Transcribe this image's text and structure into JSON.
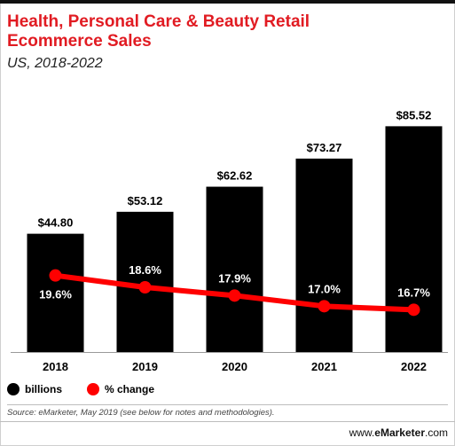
{
  "header": {
    "title": "Health, Personal Care & Beauty Retail Ecommerce Sales",
    "subtitle": "US, 2018-2022"
  },
  "legend": {
    "billions_label": "billions",
    "change_label": "% change"
  },
  "footer": {
    "source": "Source: eMarketer, May 2019 (see below for notes and methodologies).",
    "brand_prefix": "www.",
    "brand_name": "eMarketer",
    "brand_suffix": ".com"
  },
  "colors": {
    "accent": "#e11b22",
    "bar": "#000000"
  },
  "chart_data": {
    "type": "bar",
    "categories": [
      "2018",
      "2019",
      "2020",
      "2021",
      "2022"
    ],
    "series": [
      {
        "name": "billions",
        "values": [
          44.8,
          53.12,
          62.62,
          73.27,
          85.52
        ],
        "labels": [
          "$44.80",
          "$53.12",
          "$62.62",
          "$73.27",
          "$85.52"
        ],
        "color": "#000000"
      },
      {
        "name": "% change",
        "type": "line",
        "values": [
          19.6,
          18.6,
          17.9,
          17.0,
          16.7
        ],
        "labels": [
          "19.6%",
          "18.6%",
          "17.9%",
          "17.0%",
          "16.7%"
        ],
        "color": "#ff0000"
      }
    ],
    "ylim": [
      0,
      88
    ],
    "grid": false,
    "legend_position": "bottom-left"
  }
}
